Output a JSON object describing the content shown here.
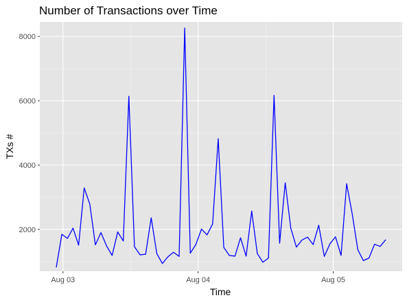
{
  "chart_data": {
    "type": "line",
    "title": "Number of Transactions over Time",
    "xlabel": "Time",
    "ylabel": "TXs #",
    "x_ticks": [
      "Aug 03",
      "Aug 04",
      "Aug 05"
    ],
    "y_ticks": [
      2000,
      4000,
      6000,
      8000
    ],
    "ylim": [
      700,
      8450
    ],
    "grid": true,
    "legend": "none",
    "series": [
      {
        "color": "#0000ff",
        "values": [
          820,
          1850,
          1720,
          2040,
          1510,
          3290,
          2790,
          1520,
          1900,
          1490,
          1190,
          1920,
          1640,
          6140,
          1460,
          1210,
          1230,
          2360,
          1250,
          940,
          1150,
          1290,
          1160,
          8260,
          1260,
          1530,
          2010,
          1830,
          2170,
          4820,
          1440,
          1190,
          1170,
          1740,
          1170,
          2570,
          1250,
          980,
          1110,
          6170,
          1570,
          3450,
          2040,
          1450,
          1670,
          1760,
          1530,
          2130,
          1160,
          1550,
          1770,
          1190,
          3420,
          2480,
          1370,
          1030,
          1110,
          1540,
          1470,
          1680
        ]
      }
    ]
  }
}
